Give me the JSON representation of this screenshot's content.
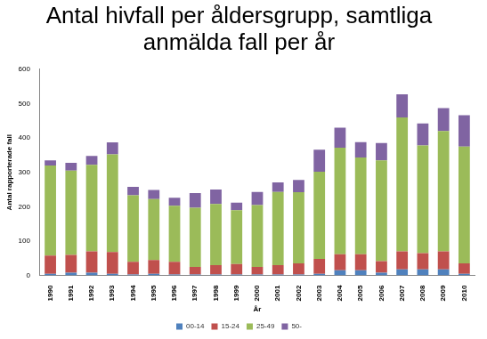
{
  "chart_data": {
    "type": "bar",
    "stacked": true,
    "title": [
      "Antal hivfall per åldersgrupp, samtliga",
      "anmälda fall per år"
    ],
    "x_label": "År",
    "y_label": "Antal rapporterade fall",
    "categories": [
      "1990",
      "1991",
      "1992",
      "1993",
      "1994",
      "1995",
      "1996",
      "1997",
      "1998",
      "1999",
      "2000",
      "2001",
      "2002",
      "2003",
      "2004",
      "2005",
      "2006",
      "2007",
      "2008",
      "2009",
      "2010"
    ],
    "series": [
      {
        "name": "00-14",
        "color": "#4f81bd",
        "values": [
          5,
          8,
          8,
          5,
          3,
          5,
          3,
          3,
          3,
          3,
          3,
          3,
          3,
          5,
          15,
          15,
          8,
          18,
          18,
          18,
          5
        ]
      },
      {
        "name": "15-24",
        "color": "#c0504d",
        "values": [
          53,
          52,
          62,
          63,
          37,
          40,
          37,
          22,
          27,
          30,
          22,
          27,
          32,
          43,
          47,
          47,
          34,
          52,
          47,
          52,
          30
        ]
      },
      {
        "name": "25-49",
        "color": "#9bbb59",
        "values": [
          262,
          245,
          252,
          284,
          193,
          177,
          163,
          172,
          178,
          157,
          180,
          213,
          207,
          254,
          310,
          281,
          293,
          390,
          313,
          350,
          340
        ]
      },
      {
        "name": "50-",
        "color": "#8064a2",
        "values": [
          15,
          23,
          26,
          35,
          25,
          27,
          23,
          43,
          42,
          22,
          38,
          28,
          36,
          64,
          58,
          45,
          50,
          67,
          64,
          67,
          91
        ]
      }
    ],
    "ylim": [
      0,
      600
    ],
    "yticks": [
      0,
      100,
      200,
      300,
      400,
      500,
      600
    ],
    "grid": false,
    "legend": "bottom"
  }
}
